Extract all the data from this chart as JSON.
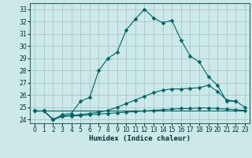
{
  "xlabel": "Humidex (Indice chaleur)",
  "bg_color": "#cce8e8",
  "grid_color": "#aacccc",
  "line_color": "#006666",
  "xlim": [
    -0.5,
    23.5
  ],
  "ylim": [
    23.7,
    33.5
  ],
  "yticks": [
    24,
    25,
    26,
    27,
    28,
    29,
    30,
    31,
    32,
    33
  ],
  "xticks": [
    0,
    1,
    2,
    3,
    4,
    5,
    6,
    7,
    8,
    9,
    10,
    11,
    12,
    13,
    14,
    15,
    16,
    17,
    18,
    19,
    20,
    21,
    22,
    23
  ],
  "line1_x": [
    0,
    1,
    2,
    3,
    4,
    5,
    6,
    7,
    8,
    9,
    10,
    11,
    12,
    13,
    14,
    15,
    16,
    17,
    18,
    19,
    20,
    21,
    22
  ],
  "line1_y": [
    24.7,
    24.7,
    24.0,
    24.4,
    24.5,
    25.5,
    25.8,
    28.0,
    29.0,
    29.5,
    31.3,
    32.2,
    33.0,
    32.3,
    31.9,
    32.1,
    30.5,
    29.2,
    28.7,
    27.5,
    26.8,
    25.5,
    25.5
  ],
  "line2_x": [
    0,
    1,
    2,
    3,
    4,
    5,
    6,
    7,
    8,
    9,
    10,
    11,
    12,
    13,
    14,
    15,
    16,
    17,
    18,
    19,
    20,
    21,
    22,
    23
  ],
  "line2_y": [
    24.7,
    24.7,
    24.0,
    24.3,
    24.35,
    24.4,
    24.5,
    24.6,
    24.75,
    25.0,
    25.3,
    25.6,
    25.9,
    26.2,
    26.4,
    26.5,
    26.5,
    26.55,
    26.6,
    26.8,
    26.3,
    25.6,
    25.5,
    25.0
  ],
  "line3_x": [
    0,
    1,
    2,
    3,
    4,
    5,
    6,
    7,
    8,
    9,
    10,
    11,
    12,
    13,
    14,
    15,
    16,
    17,
    18,
    19,
    20,
    21,
    22,
    23
  ],
  "line3_y": [
    24.7,
    24.7,
    24.0,
    24.25,
    24.3,
    24.32,
    24.4,
    24.45,
    24.5,
    24.55,
    24.6,
    24.65,
    24.7,
    24.75,
    24.8,
    24.85,
    24.9,
    24.9,
    24.95,
    24.95,
    24.9,
    24.85,
    24.8,
    24.75
  ],
  "line4_x": [
    0,
    23
  ],
  "line4_y": [
    24.7,
    24.7
  ]
}
